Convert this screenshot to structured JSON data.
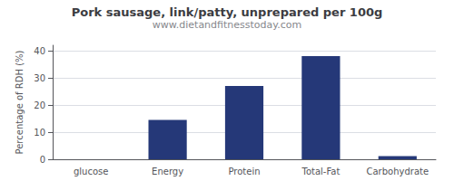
{
  "chart_data": {
    "type": "bar",
    "title": "Pork sausage, link/patty, unprepared per 100g",
    "subtitle": "www.dietandfitnesstoday.com",
    "categories": [
      "glucose",
      "Energy",
      "Protein",
      "Total-Fat",
      "Carbohydrate"
    ],
    "values": [
      0,
      14.5,
      27,
      38,
      1.2
    ],
    "color": "#253878",
    "ylabel": "Percentage of RDH (%)",
    "ylim": [
      0,
      42
    ],
    "yticks": [
      0,
      10,
      20,
      30,
      40
    ],
    "grid": true
  }
}
